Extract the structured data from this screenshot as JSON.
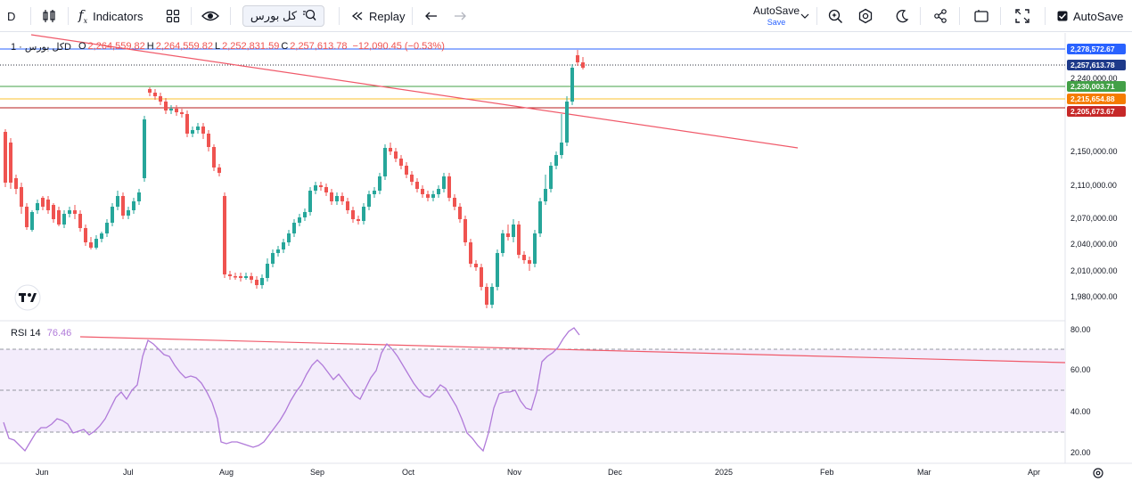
{
  "toolbar": {
    "interval": "D",
    "indicators_label": "Indicators",
    "symbol": "کل بورس",
    "replay_label": "Replay",
    "autosave_title": "AutoSave",
    "autosave_sub": "Save",
    "autosave_right": "AutoSave"
  },
  "legend": {
    "title": "کل بورس · 1D",
    "open_label": "O",
    "open": "2,264,559.82",
    "high_label": "H",
    "high": "2,264,559.82",
    "low_label": "L",
    "low": "2,252,831.59",
    "close_label": "C",
    "close": "2,257,613.78",
    "change": "−12,090.45 (−0.53%)"
  },
  "rsi": {
    "label": "RSI 14",
    "value": "76.46",
    "axis_labels": [
      "80.00",
      "60.00",
      "40.00",
      "20.00"
    ]
  },
  "price_axis": {
    "labels": [
      "2,240,000.00",
      "2,150,000.00",
      "2,110,000.00",
      "2,070,000.00",
      "2,040,000.00",
      "2,010,000.00",
      "1,980,000.00"
    ],
    "badges": [
      {
        "text": "2,278,572.67",
        "color": "#2962ff"
      },
      {
        "text": "2,257,613.78",
        "color": "#1e3a8a"
      },
      {
        "text": "2,230,003.71",
        "color": "#43a047"
      },
      {
        "text": "2,215,654.88",
        "color": "#f57c00"
      },
      {
        "text": "2,205,673.67",
        "color": "#c62828"
      }
    ]
  },
  "time_axis": {
    "labels": [
      "Jun",
      "Jul",
      "Aug",
      "Sep",
      "Oct",
      "Nov",
      "Dec",
      "2025",
      "Feb",
      "Mar",
      "Apr"
    ]
  },
  "colors": {
    "up": "#26a69a",
    "down": "#ef5350",
    "trendline": "#f05a6a",
    "rsi_line": "#b07ad9",
    "rsi_band": "#f3ecfb"
  }
}
